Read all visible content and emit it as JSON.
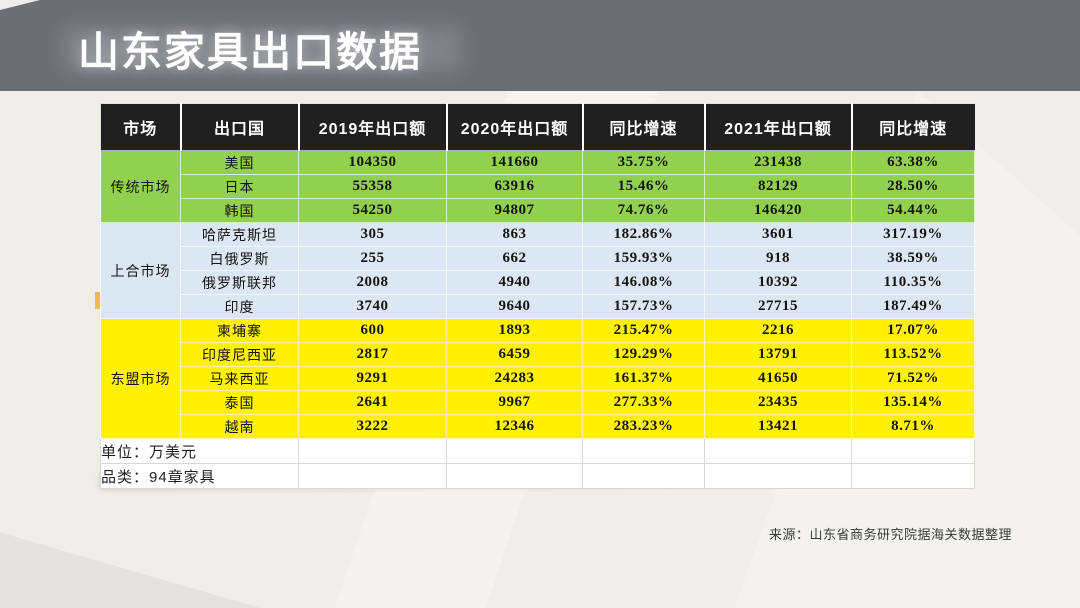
{
  "title": "山东家具出口数据",
  "source_note": "来源：山东省商务研究院据海关数据整理",
  "colors": {
    "banner": "#6b6e75",
    "header_bg": "#202020",
    "traditional": "#92d050",
    "sco": "#dbe8f3",
    "asean": "#fff101",
    "page_bg": "#efeee8",
    "title_text": "#ffffff"
  },
  "chart_data": {
    "type": "table",
    "title": "山东家具出口数据",
    "unit": "万美元",
    "columns": [
      "市场",
      "出口国",
      "2019年出口额",
      "2020年出口额",
      "同比增速",
      "2021年出口额",
      "同比增速"
    ],
    "groups": [
      {
        "market": "传统市场",
        "style": "traditional",
        "rows": [
          {
            "country": "美国",
            "values": [
              "104350",
              "141660",
              "35.75%",
              "231438",
              "63.38%"
            ]
          },
          {
            "country": "日本",
            "values": [
              "55358",
              "63916",
              "15.46%",
              "82129",
              "28.50%"
            ]
          },
          {
            "country": "韩国",
            "values": [
              "54250",
              "94807",
              "74.76%",
              "146420",
              "54.44%"
            ]
          }
        ]
      },
      {
        "market": "上合市场",
        "style": "sco",
        "rows": [
          {
            "country": "哈萨克斯坦",
            "values": [
              "305",
              "863",
              "182.86%",
              "3601",
              "317.19%"
            ]
          },
          {
            "country": "白俄罗斯",
            "values": [
              "255",
              "662",
              "159.93%",
              "918",
              "38.59%"
            ]
          },
          {
            "country": "俄罗斯联邦",
            "values": [
              "2008",
              "4940",
              "146.08%",
              "10392",
              "110.35%"
            ]
          },
          {
            "country": "印度",
            "values": [
              "3740",
              "9640",
              "157.73%",
              "27715",
              "187.49%"
            ]
          }
        ]
      },
      {
        "market": "东盟市场",
        "style": "asean",
        "rows": [
          {
            "country": "柬埔寨",
            "values": [
              "600",
              "1893",
              "215.47%",
              "2216",
              "17.07%"
            ]
          },
          {
            "country": "印度尼西亚",
            "values": [
              "2817",
              "6459",
              "129.29%",
              "13791",
              "113.52%"
            ]
          },
          {
            "country": "马来西亚",
            "values": [
              "9291",
              "24283",
              "161.37%",
              "41650",
              "71.52%"
            ]
          },
          {
            "country": "泰国",
            "values": [
              "2641",
              "9967",
              "277.33%",
              "23435",
              "135.14%"
            ]
          },
          {
            "country": "越南",
            "values": [
              "3222",
              "12346",
              "283.23%",
              "13421",
              "8.71%"
            ]
          }
        ]
      }
    ],
    "footer_rows": [
      "单位：万美元",
      "品类：94章家具"
    ]
  }
}
